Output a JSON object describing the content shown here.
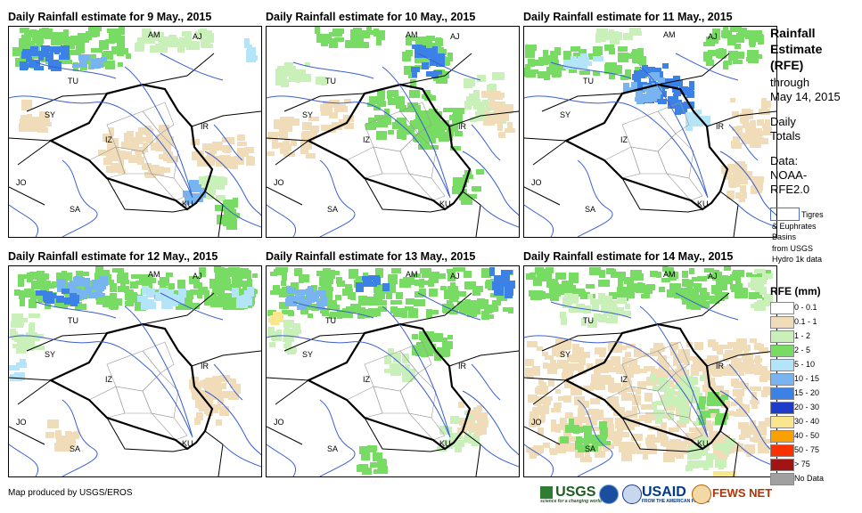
{
  "panels": [
    {
      "title": "Daily Rainfall estimate for 9 May., 2015",
      "pattern": "p1"
    },
    {
      "title": "Daily Rainfall estimate for 10 May., 2015",
      "pattern": "p2"
    },
    {
      "title": "Daily Rainfall estimate for 11 May., 2015",
      "pattern": "p3"
    },
    {
      "title": "Daily Rainfall estimate for 12 May., 2015",
      "pattern": "p4"
    },
    {
      "title": "Daily Rainfall estimate for 13 May., 2015",
      "pattern": "p5"
    },
    {
      "title": "Daily Rainfall estimate for 14 May., 2015",
      "pattern": "p6"
    }
  ],
  "country_labels": [
    "AM",
    "AJ",
    "TU",
    "SY",
    "IZ",
    "IR",
    "JO",
    "SA",
    "KU"
  ],
  "sidebar": {
    "title_line1": "Rainfall",
    "title_line2": "Estimate",
    "title_line3": "(RFE)",
    "through": "through",
    "date": "May 14, 2015",
    "daily": "Daily",
    "totals": "Totals",
    "data_label": "Data:",
    "data_src1": "NOAA-",
    "data_src2": "RFE2.0",
    "basin_line1": "Tigres",
    "basin_line2": "& Euphrates",
    "basin_line3": "Basins",
    "basin_line4": "from USGS",
    "basin_line5": "Hydro 1k data",
    "legend_title": "RFE (mm)"
  },
  "legend": [
    {
      "label": "0 - 0.1",
      "color": "#ffffff"
    },
    {
      "label": "0.1 - 1",
      "color": "#f0dcb8"
    },
    {
      "label": "1 - 2",
      "color": "#c8f0b8"
    },
    {
      "label": "2 - 5",
      "color": "#78dc64"
    },
    {
      "label": "5 - 10",
      "color": "#b4e4f8"
    },
    {
      "label": "10 - 15",
      "color": "#78b4f0"
    },
    {
      "label": "15 - 20",
      "color": "#3c82e6"
    },
    {
      "label": "20 - 30",
      "color": "#1e3cc8"
    },
    {
      "label": "30 - 40",
      "color": "#fae68c"
    },
    {
      "label": "40 - 50",
      "color": "#faa000"
    },
    {
      "label": "50 - 75",
      "color": "#fa3200"
    },
    {
      "label": "> 75",
      "color": "#a01414"
    },
    {
      "label": "No Data",
      "color": "#a0a0a0"
    }
  ],
  "footer": {
    "credit": "Map produced by USGS/EROS"
  },
  "logos": {
    "usgs": "USGS",
    "usgs_tag": "science for a changing world",
    "usaid": "USAID",
    "usaid_tag": "FROM THE AMERICAN PEOPLE",
    "fews": "FEWS NET"
  }
}
